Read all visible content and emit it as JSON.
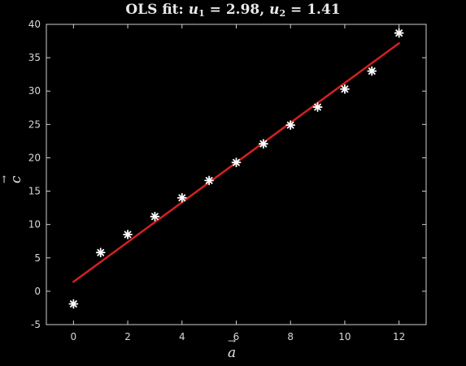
{
  "chart_data": {
    "type": "scatter",
    "title": {
      "prefix": "OLS fit: ",
      "u1_symbol": "u",
      "u1_sub": "1",
      "u1_value": " = 2.98, ",
      "u2_symbol": "u",
      "u2_sub": "2",
      "u2_value": " = 1.41"
    },
    "xlabel": "a",
    "ylabel": "c",
    "xlim": [
      -1,
      13
    ],
    "ylim": [
      -5,
      40
    ],
    "xticks": [
      0,
      2,
      4,
      6,
      8,
      10,
      12
    ],
    "yticks": [
      -5,
      0,
      5,
      10,
      15,
      20,
      25,
      30,
      35,
      40
    ],
    "series": [
      {
        "kind": "points",
        "marker": "asterisk",
        "color": "#ffffff",
        "x": [
          0,
          1,
          2,
          3,
          4,
          5,
          6,
          7,
          8,
          9,
          10,
          11,
          12
        ],
        "y": [
          -1.9,
          5.8,
          8.5,
          11.2,
          14.0,
          16.6,
          19.3,
          22.1,
          24.9,
          27.6,
          30.3,
          33.0,
          38.7
        ]
      },
      {
        "kind": "fit-line",
        "color": "#d42020",
        "x": [
          0,
          12
        ],
        "y": [
          1.41,
          37.17
        ]
      }
    ],
    "grid": false,
    "legend": "none",
    "background": "#000000",
    "axes_color": "#cfcfcf"
  }
}
